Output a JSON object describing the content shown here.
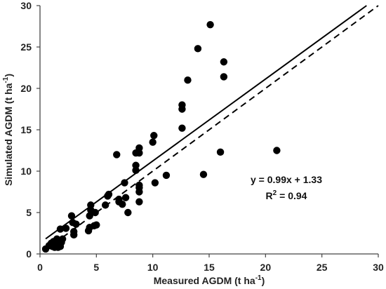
{
  "chart_data": {
    "type": "scatter",
    "xlabel": "Measured AGDM (t ha",
    "xlabel_sup": "-1",
    "xlabel_end": ")",
    "ylabel": "Simulated AGDM (t ha",
    "ylabel_sup": "-1",
    "ylabel_end": ")",
    "xlim": [
      0,
      30
    ],
    "ylim": [
      0,
      30
    ],
    "x_ticks": [
      "0",
      "5",
      "10",
      "15",
      "20",
      "25",
      "30"
    ],
    "y_ticks": [
      "0",
      "5",
      "10",
      "15",
      "20",
      "25",
      "30"
    ],
    "grid": false,
    "colors": {
      "points": "#000000",
      "lines": "#000000",
      "axes": "#444444"
    },
    "lines": [
      {
        "style": "solid",
        "slope": 0.99,
        "intercept": 1.33
      },
      {
        "style": "dashed",
        "slope": 1,
        "intercept": 0
      }
    ],
    "annotation": {
      "equation": "y = 0.99x + 1.33",
      "r2_prefix": "R",
      "r2_sup": "2",
      "r2_suffix": " = 0.94"
    },
    "points": [
      [
        0.5,
        0.6
      ],
      [
        0.8,
        1.0
      ],
      [
        1.0,
        1.3
      ],
      [
        1.1,
        0.9
      ],
      [
        1.2,
        1.5
      ],
      [
        1.3,
        0.8
      ],
      [
        1.4,
        1.1
      ],
      [
        1.5,
        1.8
      ],
      [
        1.6,
        0.8
      ],
      [
        1.7,
        1.2
      ],
      [
        1.8,
        0.9
      ],
      [
        1.9,
        1.4
      ],
      [
        2.0,
        1.8
      ],
      [
        1.8,
        3.0
      ],
      [
        2.3,
        3.1
      ],
      [
        2.8,
        4.6
      ],
      [
        2.9,
        3.8
      ],
      [
        3.0,
        2.3
      ],
      [
        3.0,
        2.7
      ],
      [
        3.2,
        3.6
      ],
      [
        4.3,
        2.8
      ],
      [
        4.4,
        3.2
      ],
      [
        4.4,
        4.6
      ],
      [
        4.5,
        5.3
      ],
      [
        4.5,
        5.9
      ],
      [
        4.8,
        3.4
      ],
      [
        4.9,
        5.0
      ],
      [
        5.0,
        3.5
      ],
      [
        5.8,
        5.9
      ],
      [
        6.0,
        7.0
      ],
      [
        6.1,
        7.2
      ],
      [
        6.8,
        12.0
      ],
      [
        7.0,
        6.3
      ],
      [
        7.0,
        6.6
      ],
      [
        7.3,
        6.0
      ],
      [
        7.5,
        8.6
      ],
      [
        7.6,
        6.8
      ],
      [
        7.8,
        5.0
      ],
      [
        8.5,
        10.1
      ],
      [
        8.5,
        10.7
      ],
      [
        8.5,
        12.2
      ],
      [
        8.8,
        6.3
      ],
      [
        8.8,
        7.5
      ],
      [
        8.8,
        8.0
      ],
      [
        8.8,
        8.3
      ],
      [
        8.8,
        12.2
      ],
      [
        8.8,
        12.8
      ],
      [
        10.0,
        13.5
      ],
      [
        10.1,
        14.3
      ],
      [
        10.2,
        8.6
      ],
      [
        11.2,
        9.5
      ],
      [
        12.6,
        15.2
      ],
      [
        12.6,
        17.5
      ],
      [
        12.6,
        18.0
      ],
      [
        13.1,
        21.0
      ],
      [
        14.0,
        24.8
      ],
      [
        14.5,
        9.6
      ],
      [
        15.1,
        27.7
      ],
      [
        16.0,
        12.3
      ],
      [
        16.3,
        21.4
      ],
      [
        16.3,
        23.2
      ],
      [
        21.0,
        12.5
      ]
    ]
  }
}
